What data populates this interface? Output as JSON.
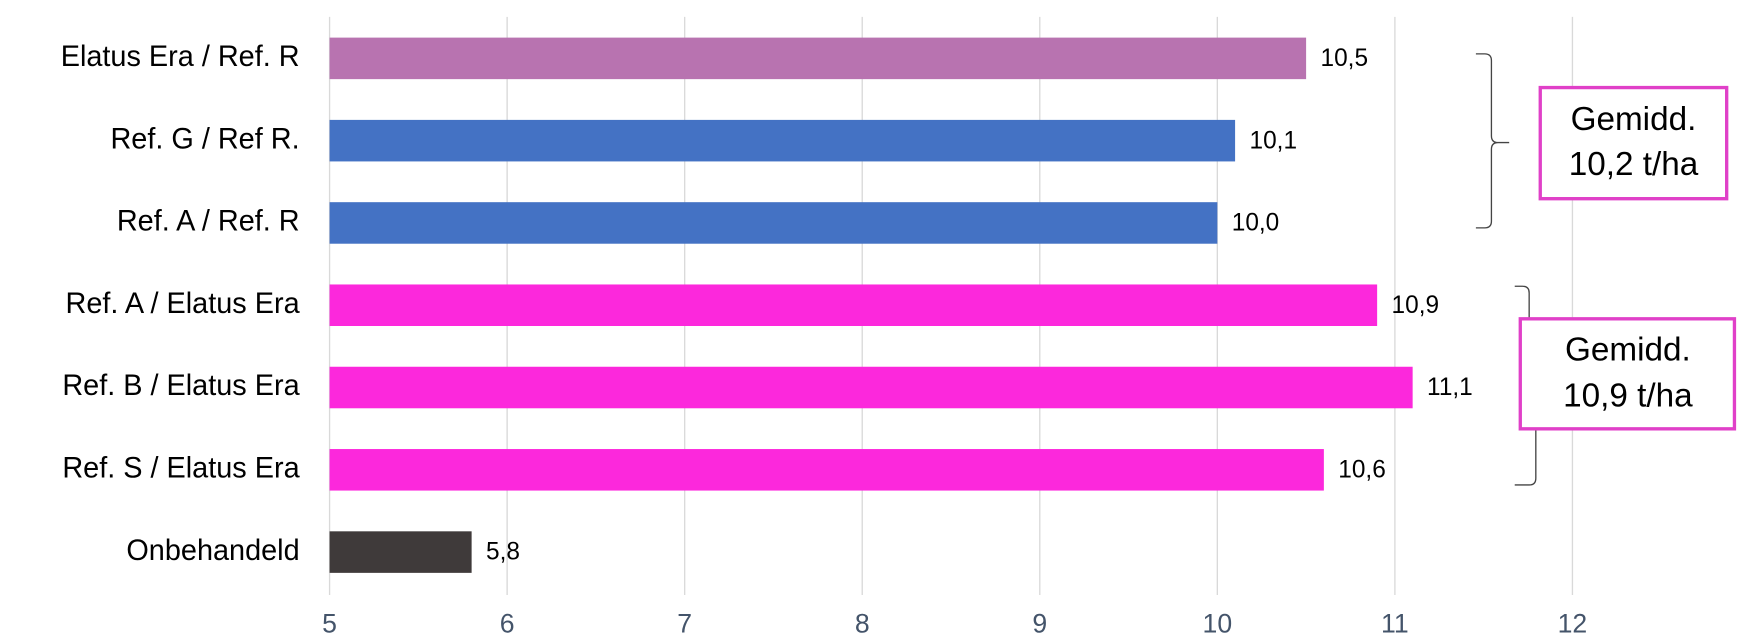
{
  "chart_data": {
    "type": "hbar",
    "categories": [
      "Elatus Era / Ref. R",
      "Ref. G / Ref R.",
      "Ref. A / Ref. R",
      "Ref. A / Elatus Era",
      "Ref. B / Elatus Era",
      "Ref. S / Elatus Era",
      "Onbehandeld"
    ],
    "values": [
      10.5,
      10.1,
      10.0,
      10.9,
      11.1,
      10.6,
      5.8
    ],
    "value_labels": [
      "10,5",
      "10,1",
      "10,0",
      "10,9",
      "11,1",
      "10,6",
      "5,8"
    ],
    "colors": [
      "#b873b0",
      "#4472c4",
      "#4472c4",
      "#fc28dc",
      "#fc28dc",
      "#fc28dc",
      "#3f3a3a"
    ],
    "xlim": [
      5,
      13
    ],
    "xticks": [
      5,
      6,
      7,
      8,
      9,
      10,
      11,
      12
    ],
    "grid": true,
    "annotations": [
      {
        "lines": [
          "Gemidd.",
          "10,2 t/ha"
        ]
      },
      {
        "lines": [
          "Gemidd.",
          "10,9 t/ha"
        ]
      }
    ]
  }
}
